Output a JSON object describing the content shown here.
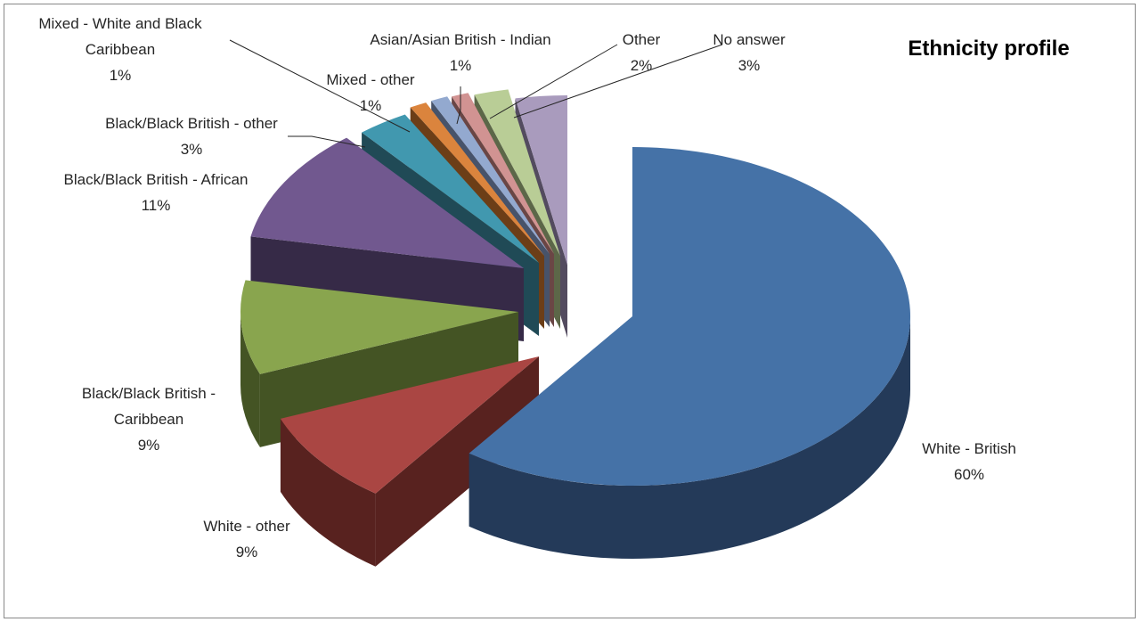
{
  "chart_data": {
    "type": "pie",
    "title": "Ethnicity profile",
    "style": "3d-exploded",
    "slices": [
      {
        "label_lines": [
          "White - British"
        ],
        "pct_text": "60%",
        "value": 60,
        "color": "#4572A7",
        "side": "#243A59"
      },
      {
        "label_lines": [
          "White - other"
        ],
        "pct_text": "9%",
        "value": 9,
        "color": "#AA4643",
        "side": "#58221F"
      },
      {
        "label_lines": [
          "Black/Black British -",
          "Caribbean"
        ],
        "pct_text": "9%",
        "value": 9,
        "color": "#89A54E",
        "side": "#445424"
      },
      {
        "label_lines": [
          "Black/Black British - African"
        ],
        "pct_text": "11%",
        "value": 11,
        "color": "#71588F",
        "side": "#362A47"
      },
      {
        "label_lines": [
          "Black/Black British - other"
        ],
        "pct_text": "3%",
        "value": 3,
        "color": "#4198AF",
        "side": "#204A56"
      },
      {
        "label_lines": [
          "Mixed - White and Black",
          "Caribbean"
        ],
        "pct_text": "1%",
        "value": 1,
        "color": "#DB843D",
        "side": "#6C3E17"
      },
      {
        "label_lines": [
          "Mixed - other"
        ],
        "pct_text": "1%",
        "value": 1,
        "color": "#93A9CF",
        "side": "#47536A"
      },
      {
        "label_lines": [
          "Asian/Asian British - Indian"
        ],
        "pct_text": "1%",
        "value": 1,
        "color": "#D19392",
        "side": "#6A4645"
      },
      {
        "label_lines": [
          "Other"
        ],
        "pct_text": "2%",
        "value": 2,
        "color": "#B9CD96",
        "side": "#5C6748"
      },
      {
        "label_lines": [
          "No answer"
        ],
        "pct_text": "3%",
        "value": 3,
        "color": "#A99BBD",
        "side": "#534B5F"
      }
    ]
  }
}
